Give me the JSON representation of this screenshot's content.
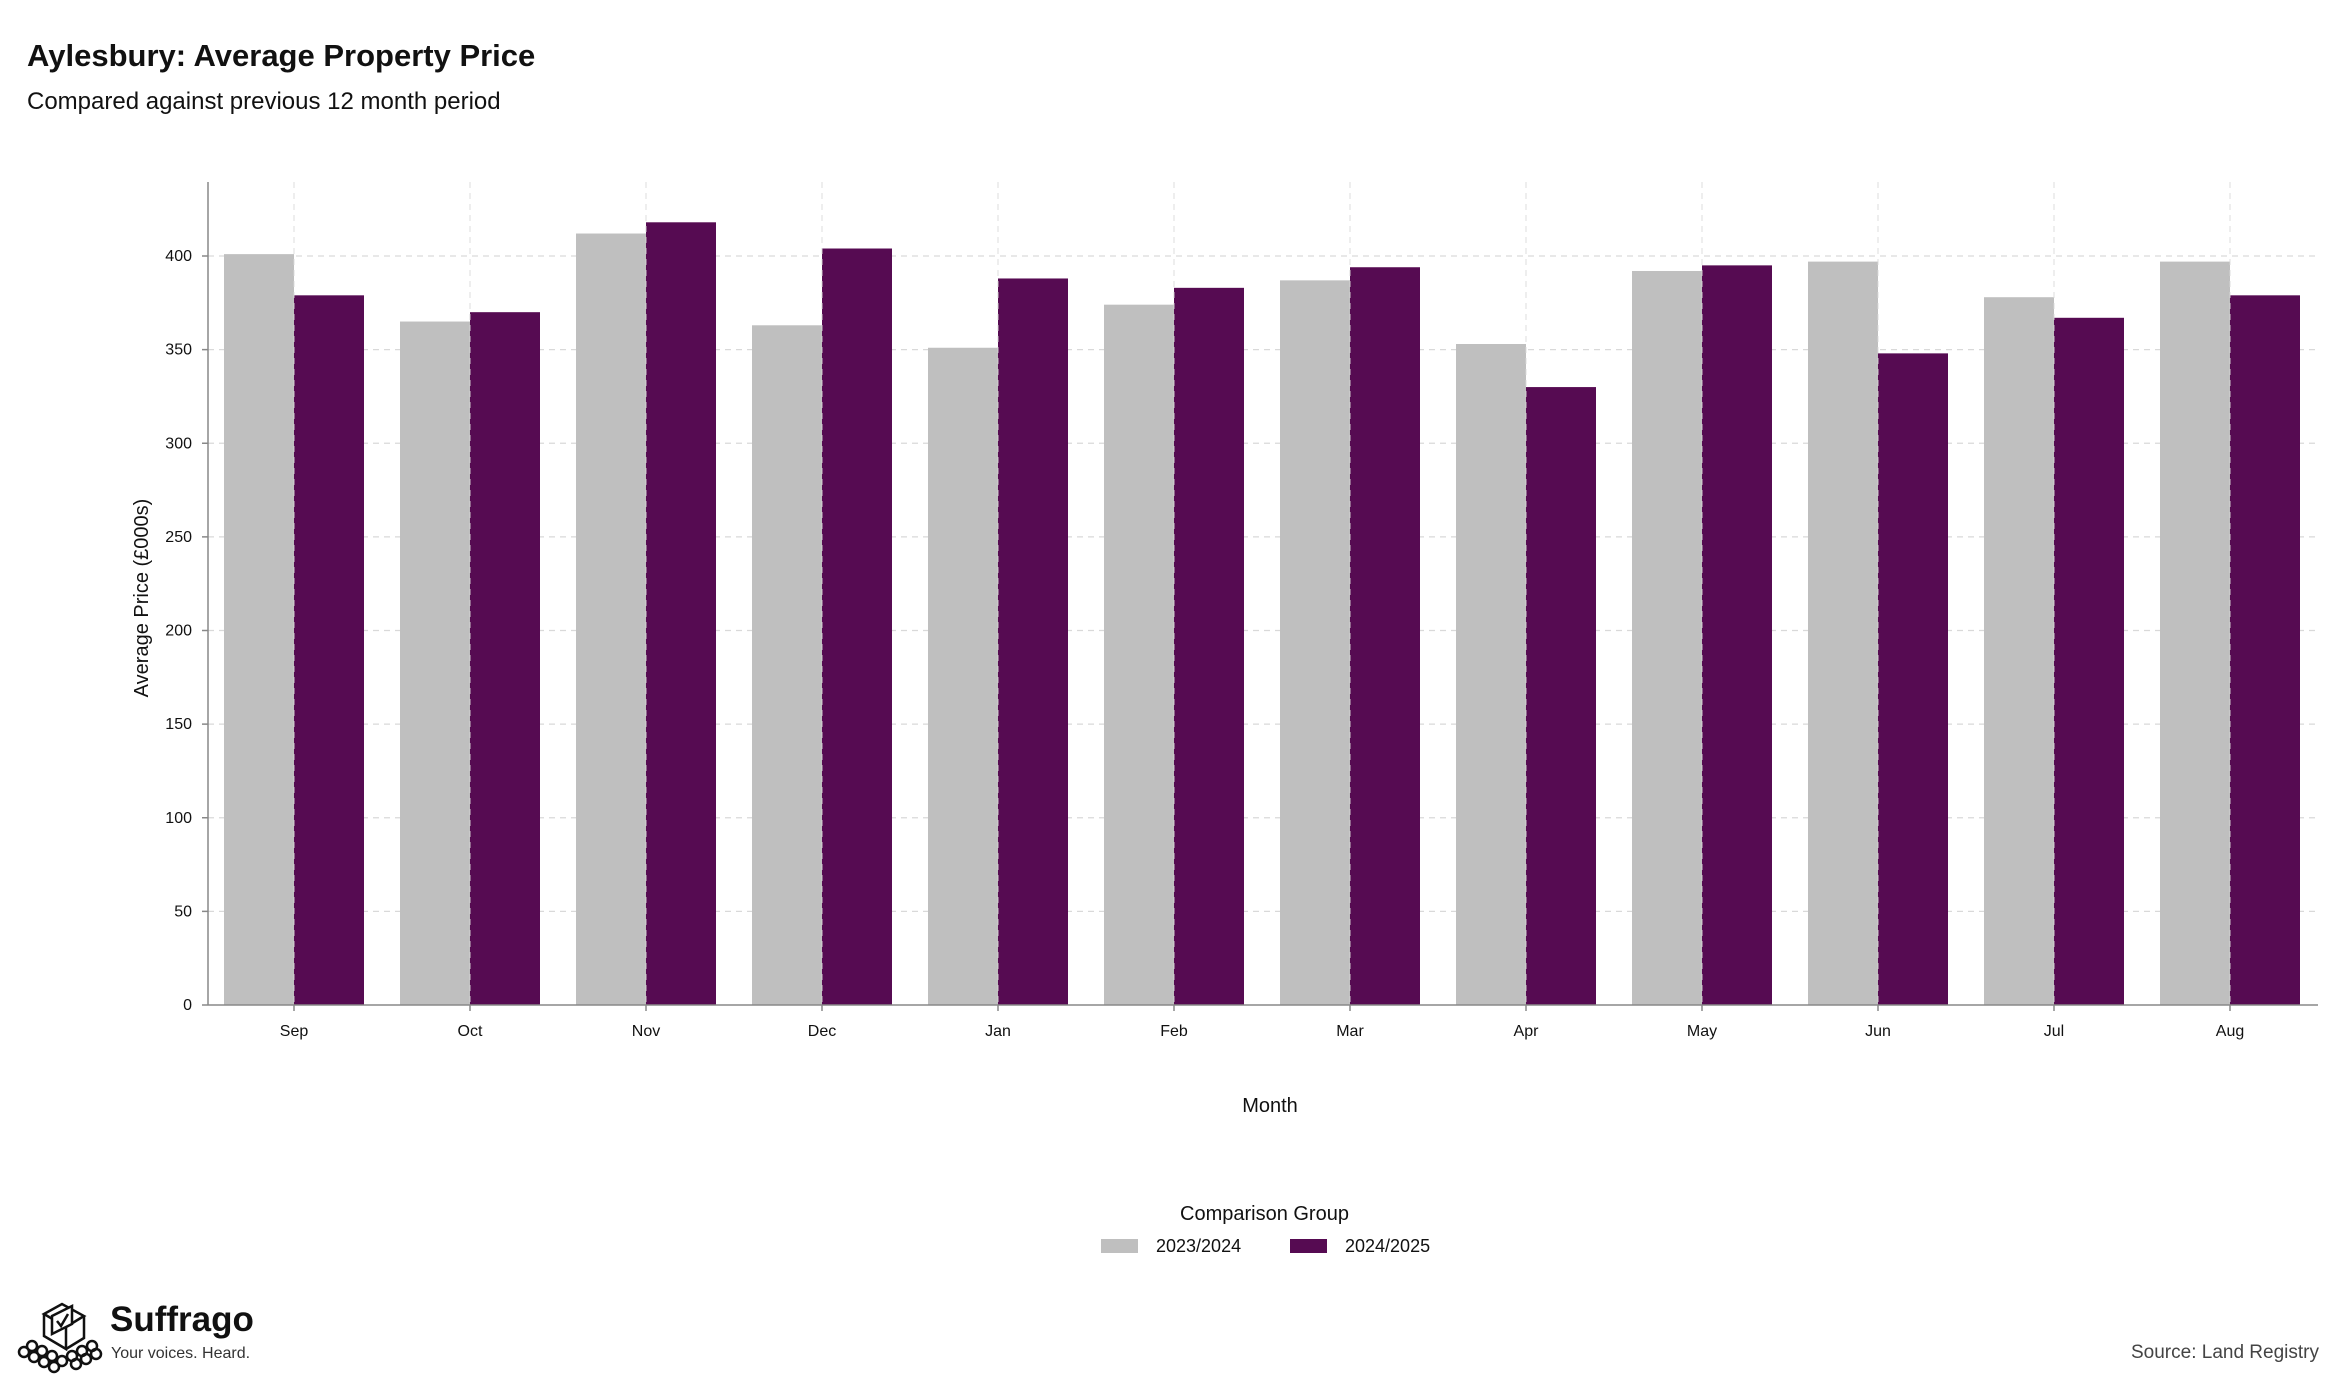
{
  "header": {
    "title": "Aylesbury: Average Property Price",
    "subtitle": "Compared against previous 12 month period"
  },
  "legend": {
    "title": "Comparison Group",
    "items": [
      {
        "label": "2023/2024",
        "color": "#bfbfbf"
      },
      {
        "label": "2024/2025",
        "color": "#560b52"
      }
    ]
  },
  "footer": {
    "brand_name": "Suffrago",
    "brand_tagline": "Your voices. Heard.",
    "source": "Source: Land Registry",
    "logo_icon": "ballot-box-icon"
  },
  "chart_data": {
    "type": "bar",
    "xlabel": "Month",
    "ylabel": "Average Price (£000s)",
    "ylim": [
      0,
      420
    ],
    "yticks": [
      0,
      50,
      100,
      150,
      200,
      250,
      300,
      350,
      400
    ],
    "grid": true,
    "legend_position": "bottom",
    "categories": [
      "Sep",
      "Oct",
      "Nov",
      "Dec",
      "Jan",
      "Feb",
      "Mar",
      "Apr",
      "May",
      "Jun",
      "Jul",
      "Aug"
    ],
    "series": [
      {
        "name": "2023/2024",
        "color": "#bfbfbf",
        "values": [
          401,
          365,
          412,
          363,
          351,
          374,
          387,
          353,
          392,
          397,
          378,
          397
        ]
      },
      {
        "name": "2024/2025",
        "color": "#560b52",
        "values": [
          379,
          370,
          418,
          404,
          388,
          383,
          394,
          330,
          395,
          348,
          367,
          379
        ]
      }
    ]
  }
}
